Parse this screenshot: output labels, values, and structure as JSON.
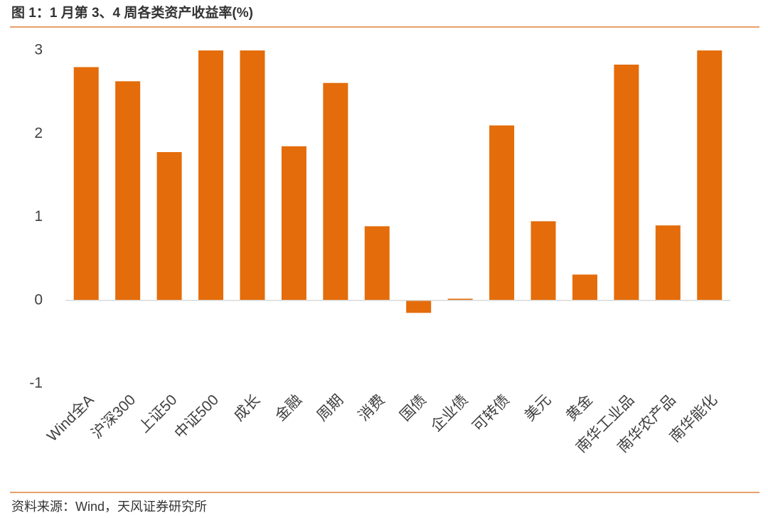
{
  "chart_data": {
    "type": "bar",
    "title": "图 1：1 月第 3、4 周各类资产收益率(%)",
    "categories": [
      "Wind全A",
      "沪深300",
      "上证50",
      "中证500",
      "成长",
      "金融",
      "周期",
      "消费",
      "国债",
      "企业债",
      "可转债",
      "美元",
      "黄金",
      "南华工业品",
      "南华农产品",
      "南华能化"
    ],
    "values": [
      2.8,
      2.63,
      1.78,
      3.0,
      3.0,
      1.85,
      2.61,
      0.89,
      -0.15,
      0.02,
      2.1,
      0.95,
      0.31,
      2.83,
      0.9,
      3.0
    ],
    "color": "#e46c0a",
    "ylim": [
      -1,
      3
    ],
    "yticks": [
      -1,
      0,
      1,
      2,
      3
    ],
    "grid": false
  },
  "source": "资料来源：Wind，天风证券研究所"
}
